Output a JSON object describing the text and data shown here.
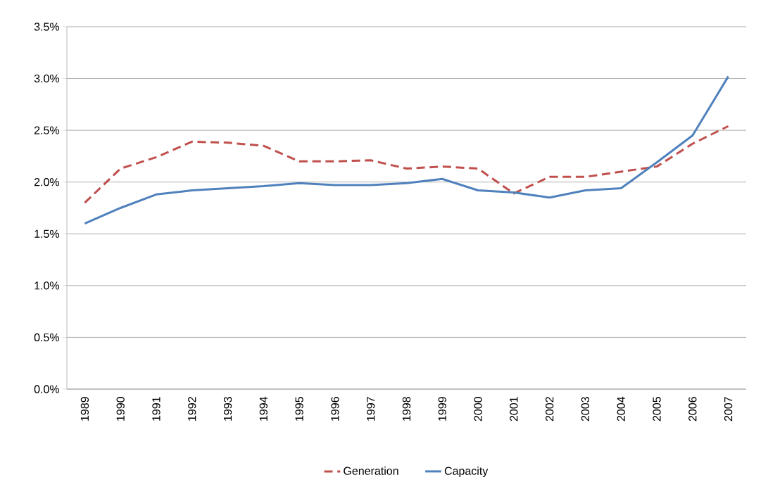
{
  "chart_data": {
    "type": "line",
    "categories": [
      "1989",
      "1990",
      "1991",
      "1992",
      "1993",
      "1994",
      "1995",
      "1996",
      "1997",
      "1998",
      "1999",
      "2000",
      "2001",
      "2002",
      "2003",
      "2004",
      "2005",
      "2006",
      "2007"
    ],
    "series": [
      {
        "name": "Generation",
        "color": "#c0504d",
        "line_style": "dashed",
        "values": [
          1.8,
          2.13,
          2.24,
          2.39,
          2.38,
          2.35,
          2.2,
          2.2,
          2.21,
          2.13,
          2.15,
          2.13,
          1.89,
          2.05,
          2.05,
          2.1,
          2.15,
          2.37,
          2.54
        ]
      },
      {
        "name": "Capacity",
        "color": "#4f81bd",
        "line_style": "solid",
        "values": [
          1.6,
          1.75,
          1.88,
          1.92,
          1.94,
          1.96,
          1.99,
          1.97,
          1.97,
          1.99,
          2.03,
          1.92,
          1.9,
          1.85,
          1.92,
          1.94,
          2.19,
          2.45,
          3.02
        ]
      }
    ],
    "ylim": [
      0,
      3.5
    ],
    "yticks": [
      {
        "value": 0,
        "label": "0.0%"
      },
      {
        "value": 0.5,
        "label": "0.5%"
      },
      {
        "value": 1,
        "label": "1.0%"
      },
      {
        "value": 1.5,
        "label": "1.5%"
      },
      {
        "value": 2,
        "label": "2.0%"
      },
      {
        "value": 2.5,
        "label": "2.5%"
      },
      {
        "value": 3,
        "label": "3.0%"
      },
      {
        "value": 3.5,
        "label": "3.5%"
      }
    ],
    "grid": "y",
    "legend": "bottom",
    "marker": "none"
  }
}
